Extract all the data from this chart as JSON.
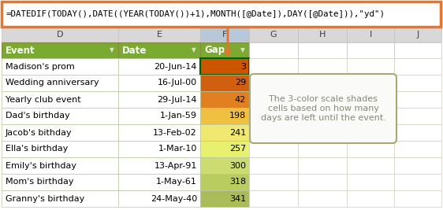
{
  "formula": "=DATEDIF(TODAY(),DATE((YEAR(TODAY())+1),MONTH([@Date]),DAY([@Date])),\"yd\")",
  "formula_border_color": "#E8732A",
  "formula_fill": "#FFFFFF",
  "col_letters": [
    "D",
    "E",
    "F",
    "G",
    "H",
    "I",
    "J"
  ],
  "header_bg": "#7AAB30",
  "header_text_color": "#FFFFFF",
  "col_header_bg": "#D8D8D8",
  "col_header_selected_bg": "#B8C8D8",
  "col_header_text": "#404040",
  "rows": [
    {
      "event": "Madison's prom",
      "date": "20-Jun-14",
      "gap": "3",
      "gap_color": "#CC5500"
    },
    {
      "event": "Wedding anniversary",
      "date": "16-Jul-00",
      "gap": "29",
      "gap_color": "#D06010"
    },
    {
      "event": "Yearly club event",
      "date": "29-Jul-14",
      "gap": "42",
      "gap_color": "#E08020"
    },
    {
      "event": "Dad's birthday",
      "date": "1-Jan-59",
      "gap": "198",
      "gap_color": "#F0C040"
    },
    {
      "event": "Jacob's bithday",
      "date": "13-Feb-02",
      "gap": "241",
      "gap_color": "#F0E870"
    },
    {
      "event": "Ella's birthday",
      "date": "1-Mar-10",
      "gap": "257",
      "gap_color": "#E8F070"
    },
    {
      "event": "Emily's birthday",
      "date": "13-Apr-91",
      "gap": "300",
      "gap_color": "#CCDC70"
    },
    {
      "event": "Mom's birthday",
      "date": "1-May-61",
      "gap": "318",
      "gap_color": "#B8CC60"
    },
    {
      "event": "Granny's birthday",
      "date": "24-May-40",
      "gap": "341",
      "gap_color": "#AABC58"
    }
  ],
  "grid_color": "#B8C8A0",
  "data_bg": "#FFFFFF",
  "note_text": "The 3-color scale shades\ncells based on how many\ndays are left until the event.",
  "note_border_color": "#A8A870",
  "note_fill": "#FAFAF8",
  "note_text_color": "#888878",
  "arrow_color": "#E8732A",
  "cell_selected_border": "#006000"
}
